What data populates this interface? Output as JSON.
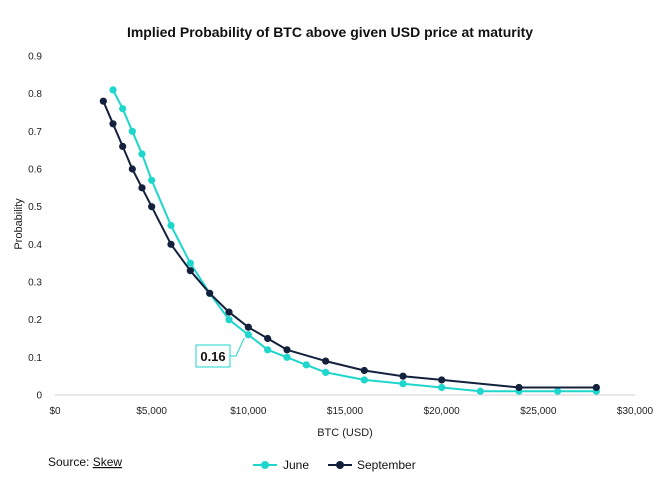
{
  "chart_data": {
    "type": "line",
    "title": "Implied Probability of BTC above given USD price at maturity",
    "xlabel": "BTC (USD)",
    "ylabel": "Probability",
    "xlim": [
      0,
      30000
    ],
    "ylim": [
      0,
      0.9
    ],
    "x_ticks": [
      0,
      5000,
      10000,
      15000,
      20000,
      25000,
      30000
    ],
    "x_tick_labels": [
      "$0",
      "$5,000",
      "$10,000",
      "$15,000",
      "$20,000",
      "$25,000",
      "$30,000"
    ],
    "y_ticks": [
      0,
      0.1,
      0.2,
      0.3,
      0.4,
      0.5,
      0.6,
      0.7,
      0.8,
      0.9
    ],
    "y_tick_labels": [
      "0",
      "0.1",
      "0.2",
      "0.3",
      "0.4",
      "0.5",
      "0.6",
      "0.7",
      "0.8",
      "0.9"
    ],
    "grid": false,
    "legend_position": "bottom",
    "series": [
      {
        "name": "June",
        "color": "#1ed6cc",
        "points": [
          [
            3000,
            0.81
          ],
          [
            3500,
            0.76
          ],
          [
            4000,
            0.7
          ],
          [
            4500,
            0.64
          ],
          [
            5000,
            0.57
          ],
          [
            6000,
            0.45
          ],
          [
            7000,
            0.35
          ],
          [
            8000,
            0.27
          ],
          [
            9000,
            0.2
          ],
          [
            10000,
            0.16
          ],
          [
            11000,
            0.12
          ],
          [
            12000,
            0.1
          ],
          [
            13000,
            0.08
          ],
          [
            14000,
            0.06
          ],
          [
            16000,
            0.04
          ],
          [
            18000,
            0.03
          ],
          [
            20000,
            0.02
          ],
          [
            22000,
            0.01
          ],
          [
            24000,
            0.01
          ],
          [
            26000,
            0.01
          ],
          [
            28000,
            0.01
          ]
        ]
      },
      {
        "name": "September",
        "color": "#13213d",
        "points": [
          [
            2500,
            0.78
          ],
          [
            3000,
            0.72
          ],
          [
            3500,
            0.66
          ],
          [
            4000,
            0.6
          ],
          [
            4500,
            0.55
          ],
          [
            5000,
            0.5
          ],
          [
            6000,
            0.4
          ],
          [
            7000,
            0.33
          ],
          [
            8000,
            0.27
          ],
          [
            9000,
            0.22
          ],
          [
            10000,
            0.18
          ],
          [
            11000,
            0.15
          ],
          [
            12000,
            0.12
          ],
          [
            14000,
            0.09
          ],
          [
            16000,
            0.065
          ],
          [
            18000,
            0.05
          ],
          [
            20000,
            0.04
          ],
          [
            24000,
            0.02
          ],
          [
            28000,
            0.02
          ]
        ]
      }
    ],
    "annotations": [
      {
        "text": "0.16",
        "series": "June",
        "x": 10000,
        "y": 0.16
      }
    ],
    "source_label": "Source: ",
    "source_link": "Skew"
  }
}
